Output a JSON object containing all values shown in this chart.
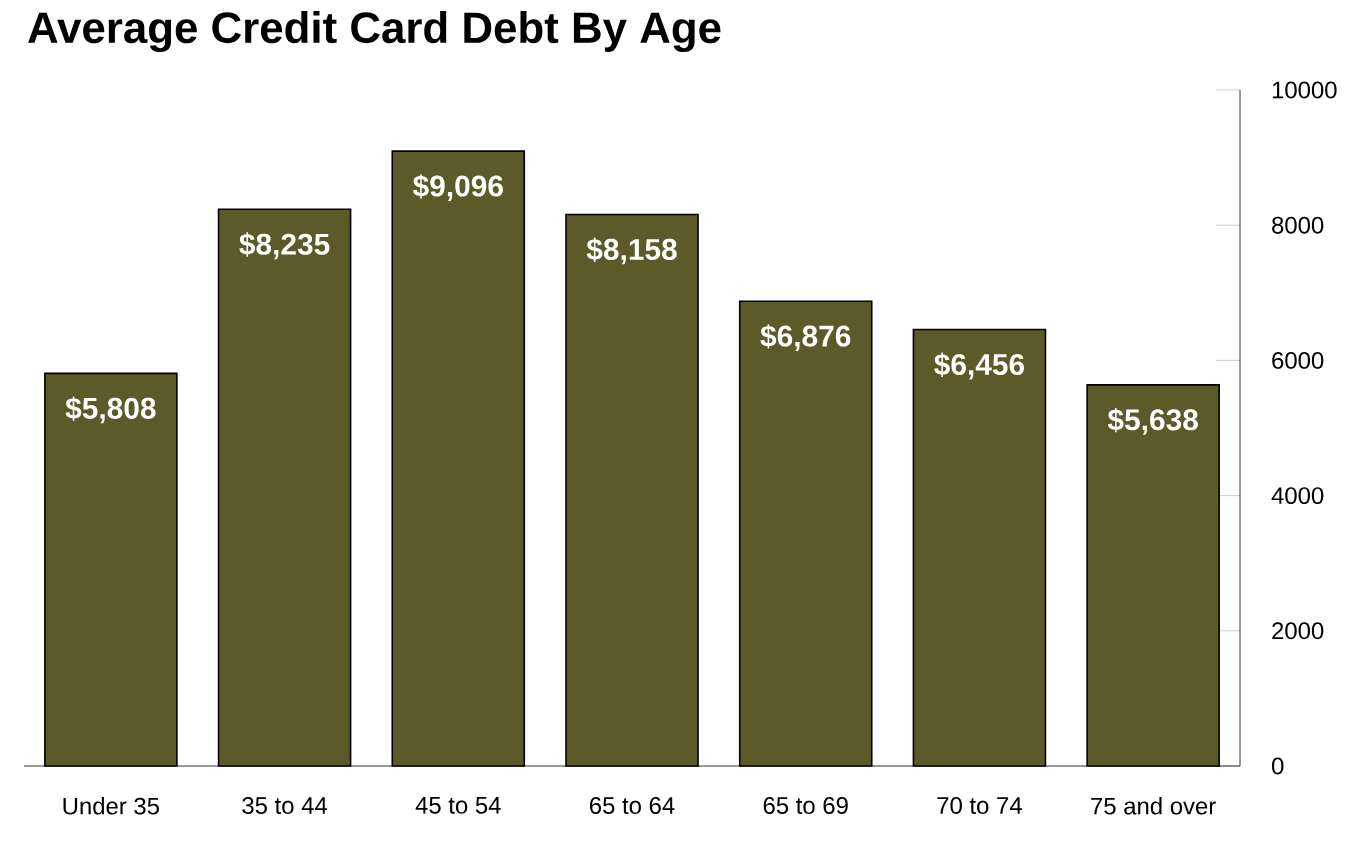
{
  "chart_data": {
    "type": "bar",
    "title": "Average Credit Card Debt By Age",
    "categories": [
      "Under 35",
      "35 to 44",
      "45 to 54",
      "65 to 64",
      "65 to 69",
      "70 to 74",
      "75 and over"
    ],
    "values": [
      5808,
      8235,
      9096,
      8158,
      6876,
      6456,
      5638
    ],
    "value_labels": [
      "$5,808",
      "$8,235",
      "$9,096",
      "$8,158",
      "$6,876",
      "$6,456",
      "$5,638"
    ],
    "color": "#5c5a28",
    "ylim": [
      0,
      10000
    ],
    "yticks": [
      0,
      2000,
      4000,
      6000,
      8000,
      10000
    ]
  }
}
